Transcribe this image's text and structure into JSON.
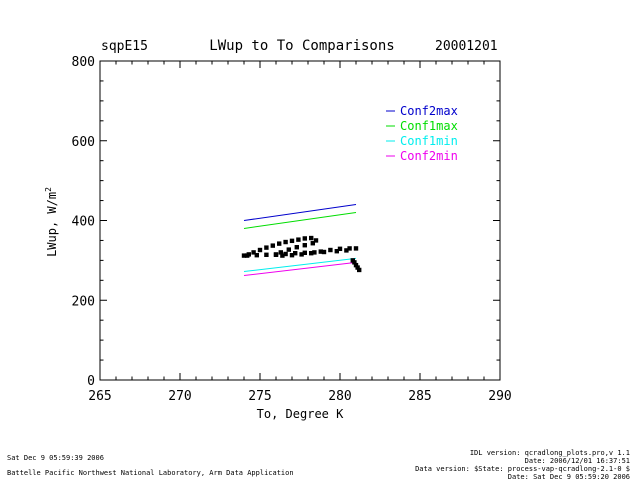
{
  "chart_data": {
    "type": "line",
    "title": "LWup to To Comparisons",
    "site": "sqpE15",
    "date": "20001201",
    "xlabel": "To, Degree K",
    "ylabel_base": "LWup, W/m",
    "ylabel_sup": "2",
    "xlim": [
      265,
      290
    ],
    "ylim": [
      0,
      800
    ],
    "x_ticks": [
      265,
      270,
      275,
      280,
      285,
      290
    ],
    "y_ticks": [
      0,
      200,
      400,
      600,
      800
    ],
    "x_tick_labels": [
      "265",
      "270",
      "275",
      "280",
      "285",
      "290"
    ],
    "y_tick_labels": [
      "0",
      "200",
      "400",
      "600",
      "800"
    ],
    "grid": false,
    "legend_position": "top-right",
    "series": [
      {
        "name": "Conf2max",
        "color": "#0000cc",
        "x": [
          274,
          281
        ],
        "y": [
          400,
          440
        ]
      },
      {
        "name": "Conf1max",
        "color": "#00dd00",
        "x": [
          274,
          281
        ],
        "y": [
          380,
          420
        ]
      },
      {
        "name": "Conf1min",
        "color": "#00eeee",
        "x": [
          274,
          281
        ],
        "y": [
          272,
          305
        ]
      },
      {
        "name": "Conf2min",
        "color": "#ee00ee",
        "x": [
          274,
          281
        ],
        "y": [
          262,
          295
        ]
      }
    ],
    "observations": {
      "color": "#000000",
      "points": [
        [
          274.0,
          312
        ],
        [
          274.3,
          315
        ],
        [
          274.6,
          320
        ],
        [
          275.0,
          326
        ],
        [
          275.4,
          332
        ],
        [
          275.8,
          337
        ],
        [
          276.2,
          342
        ],
        [
          276.6,
          346
        ],
        [
          277.0,
          349
        ],
        [
          277.4,
          352
        ],
        [
          277.8,
          355
        ],
        [
          278.2,
          356
        ],
        [
          278.5,
          350
        ],
        [
          278.3,
          343
        ],
        [
          277.8,
          338
        ],
        [
          277.3,
          333
        ],
        [
          276.8,
          327
        ],
        [
          276.3,
          320
        ],
        [
          276.0,
          314
        ],
        [
          276.4,
          312
        ],
        [
          277.0,
          313
        ],
        [
          277.6,
          315
        ],
        [
          278.2,
          318
        ],
        [
          278.8,
          322
        ],
        [
          279.4,
          326
        ],
        [
          280.0,
          329
        ],
        [
          280.6,
          330
        ],
        [
          281.0,
          330
        ],
        [
          280.4,
          325
        ],
        [
          279.8,
          323
        ],
        [
          279.0,
          321
        ],
        [
          278.4,
          320
        ],
        [
          277.8,
          319
        ],
        [
          277.2,
          318
        ],
        [
          276.6,
          316
        ],
        [
          276.0,
          315
        ],
        [
          275.4,
          314
        ],
        [
          274.8,
          313
        ],
        [
          274.2,
          312
        ],
        [
          280.8,
          300
        ],
        [
          280.9,
          295
        ],
        [
          281.0,
          288
        ],
        [
          281.1,
          282
        ],
        [
          281.2,
          276
        ]
      ]
    }
  },
  "footer": {
    "left_timestamp": "Sat Dec  9 05:59:39 2006",
    "left_org": "Battelle Pacific Northwest National Laboratory, Arm Data Application",
    "right_idl": "IDL version: qcradlong_plots.pro,v 1.1",
    "right_date": "Date: 2006/12/01 16:37:51",
    "right_data_version": "Data version: $State: process-vap-qcradlong-2.1-0 $",
    "right_date2": "Date: Sat Dec  9 05:59:20 2006"
  }
}
